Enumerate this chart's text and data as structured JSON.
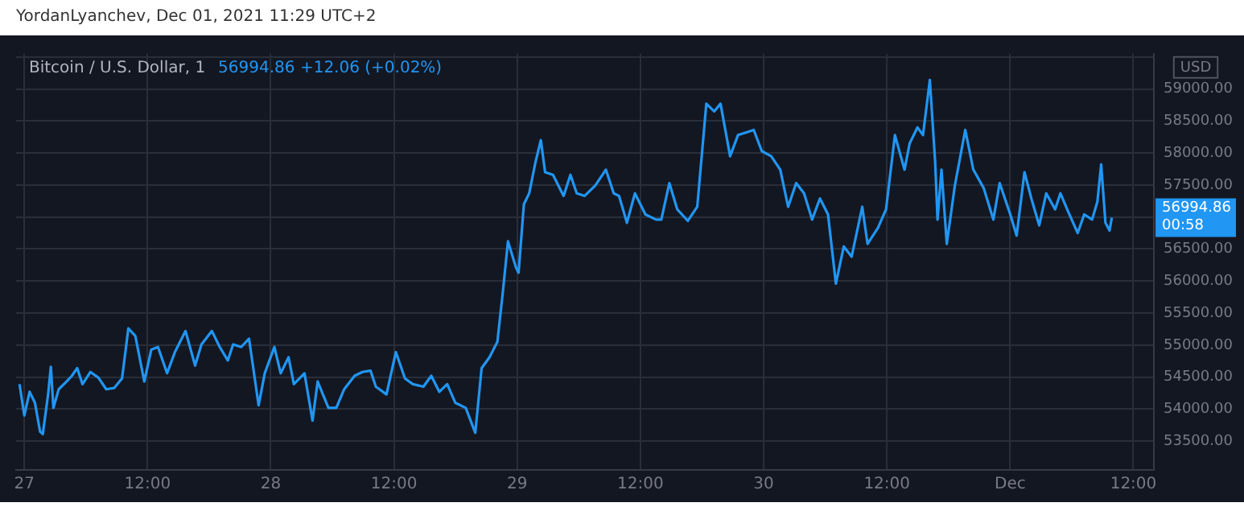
{
  "chart_data": {
    "type": "line",
    "title": "Bitcoin / U.S. Dollar, 1",
    "subtitle": "56994.86 +12.06 (+0.02%)",
    "ylabel": "USD",
    "annotations": [
      "YordanLyanchev, Dec 01, 2021 11:29 UTC+2",
      "56994.86 00:58"
    ],
    "x": [
      "--11-26T23:32",
      "--11-27T00:00",
      "--11-27T00:31",
      "--11-27T01:02",
      "--11-27T01:32",
      "--11-27T01:48",
      "--11-27T02:19",
      "--11-27T02:35",
      "--11-27T02:50",
      "--11-27T03:21",
      "--11-27T04:07",
      "--11-27T04:38",
      "--11-27T05:09",
      "--11-27T05:40",
      "--11-27T06:26",
      "--11-27T07:13",
      "--11-27T07:59",
      "--11-27T08:45",
      "--11-27T09:31",
      "--11-27T10:08",
      "--11-27T10:49",
      "--11-27T11:41",
      "--11-27T12:22",
      "--11-27T13:01",
      "--11-27T13:54",
      "--11-27T14:40",
      "--11-27T15:42",
      "--11-27T16:38",
      "--11-27T17:15",
      "--11-27T18:16",
      "--11-27T19:02",
      "--11-27T19:49",
      "--11-27T20:20",
      "--11-27T21:07",
      "--11-27T21:53",
      "--11-27T22:49",
      "--11-27T23:25",
      "--11-28T00:21",
      "--11-28T00:58",
      "--11-28T01:44",
      "--11-28T02:15",
      "--11-28T03:17",
      "--11-28T04:04",
      "--11-28T04:34",
      "--11-28T05:37",
      "--11-28T06:23",
      "--11-28T07:09",
      "--11-28T08:10",
      "--11-28T08:56",
      "--11-28T09:43",
      "--11-28T10:14",
      "--11-28T11:16",
      "--11-28T12:11",
      "--11-28T13:04",
      "--11-28T13:50",
      "--11-28T14:52",
      "--11-28T15:38",
      "--11-28T16:25",
      "--11-28T17:11",
      "--11-28T17:58",
      "--11-28T18:59",
      "--11-28T19:55",
      "--11-28T20:32",
      "--11-28T21:18",
      "--11-28T22:04",
      "--11-28T22:35",
      "--11-28T23:06",
      "--11-28T23:53",
      "--11-29T00:08",
      "--11-29T00:39",
      "--11-29T01:10",
      "--11-29T01:47",
      "--11-29T02:18",
      "--11-29T02:43",
      "--11-29T03:29",
      "--11-29T04:31",
      "--11-29T05:11",
      "--11-29T05:48",
      "--11-29T06:34",
      "--11-29T07:36",
      "--11-29T08:38",
      "--11-29T09:24",
      "--11-29T09:55",
      "--11-29T10:41",
      "--11-29T11:28",
      "--11-29T12:29",
      "--11-29T13:31",
      "--11-29T14:02",
      "--11-29T14:49",
      "--11-29T15:35",
      "--11-29T16:37",
      "--11-29T17:32",
      "--11-29T18:25",
      "--11-29T19:11",
      "--11-29T19:48",
      "--11-29T20:44",
      "--11-29T21:30",
      "--11-29T22:16",
      "--11-29T23:02",
      "--11-29T23:49",
      "--11-30T00:44",
      "--11-30T01:37",
      "--11-30T02:23",
      "--11-30T03:10",
      "--11-30T03:56",
      "--11-30T04:43",
      "--11-30T05:29",
      "--11-30T06:16",
      "--11-30T07:02",
      "--11-30T07:48",
      "--11-30T08:34",
      "--11-30T09:36",
      "--11-30T10:07",
      "--11-30T11:08",
      "--11-30T11:55",
      "--11-30T12:47",
      "--11-30T13:43",
      "--11-30T14:13",
      "--11-30T14:59",
      "--11-30T15:31",
      "--11-30T16:11",
      "--11-30T16:42",
      "--11-30T16:56",
      "--11-30T17:19",
      "--11-30T17:50",
      "--11-30T18:37",
      "--11-30T19:38",
      "--11-30T20:25",
      "--11-30T21:26",
      "--11-30T22:22",
      "--11-30T22:59",
      "--12-01T00:01",
      "--12-01T00:38",
      "--12-01T01:24",
      "--12-01T02:04",
      "--12-01T02:50",
      "--12-01T03:31",
      "--12-01T04:23",
      "--12-01T04:54",
      "--12-01T05:40",
      "--12-01T06:35",
      "--12-01T07:13",
      "--12-01T07:59",
      "--12-01T08:30",
      "--12-01T08:52",
      "--12-01T09:17",
      "--12-01T09:41",
      "--12-01T09:54"
    ],
    "series": [
      {
        "color": "#2196f3",
        "values": [
          54390,
          53900,
          54270,
          54100,
          53650,
          53610,
          54230,
          54660,
          54020,
          54310,
          54430,
          54520,
          54640,
          54390,
          54580,
          54490,
          54310,
          54330,
          54480,
          55260,
          55140,
          54430,
          54930,
          54970,
          54560,
          54890,
          55220,
          54680,
          55010,
          55220,
          54970,
          54760,
          55010,
          54970,
          55100,
          54060,
          54560,
          54970,
          54560,
          54810,
          54390,
          54560,
          53820,
          54430,
          54020,
          54020,
          54310,
          54520,
          54580,
          54600,
          54350,
          54230,
          54890,
          54480,
          54390,
          54350,
          54520,
          54270,
          54390,
          54100,
          54020,
          53630,
          54640,
          54810,
          55050,
          55800,
          56620,
          56210,
          56130,
          57200,
          57370,
          57860,
          58200,
          57700,
          57660,
          57330,
          57660,
          57370,
          57330,
          57490,
          57740,
          57370,
          57330,
          56910,
          57370,
          57040,
          56960,
          56960,
          57530,
          57120,
          56940,
          57160,
          58770,
          58650,
          58770,
          57950,
          58280,
          58320,
          58360,
          58030,
          57950,
          57740,
          57160,
          57530,
          57370,
          56960,
          57290,
          57040,
          55960,
          56540,
          56380,
          57160,
          56580,
          56830,
          57120,
          58280,
          57740,
          58150,
          58400,
          58280,
          59140,
          57860,
          56960,
          57740,
          56580,
          57490,
          58360,
          57740,
          57450,
          56960,
          57530,
          57040,
          56710,
          57700,
          57290,
          56870,
          57370,
          57120,
          57370,
          57080,
          56750,
          57040,
          56960,
          57240,
          57820,
          56910,
          56790,
          56990
        ]
      }
    ],
    "xlim": [
      "--11-26T23:12",
      "--12-01T14:00"
    ],
    "xticks": [
      {
        "value": "--11-27T00:00",
        "label": "27"
      },
      {
        "value": "--11-27T12:00",
        "label": "12:00"
      },
      {
        "value": "--11-28T00:00",
        "label": "28"
      },
      {
        "value": "--11-28T12:00",
        "label": "12:00"
      },
      {
        "value": "--11-29T00:00",
        "label": "29"
      },
      {
        "value": "--11-29T12:00",
        "label": "12:00"
      },
      {
        "value": "--11-30T00:00",
        "label": "30"
      },
      {
        "value": "--11-30T12:00",
        "label": "12:00"
      },
      {
        "value": "--12-01T00:00",
        "label": "Dec"
      },
      {
        "value": "--12-01T12:00",
        "label": "12:00"
      }
    ],
    "ylim": [
      53050,
      59550
    ],
    "yticks": [
      {
        "value": 53500,
        "label": "53500.00"
      },
      {
        "value": 54000,
        "label": "54000.00"
      },
      {
        "value": 54500,
        "label": "54500.00"
      },
      {
        "value": 55000,
        "label": "55000.00"
      },
      {
        "value": 55500,
        "label": "55500.00"
      },
      {
        "value": 56000,
        "label": "56000.00"
      },
      {
        "value": 56500,
        "label": "56500.00"
      },
      {
        "value": 57000,
        "label": null
      },
      {
        "value": 57500,
        "label": "57500.00"
      },
      {
        "value": 58000,
        "label": "58000.00"
      },
      {
        "value": 58500,
        "label": "58500.00"
      },
      {
        "value": 59000,
        "label": "59000.00"
      },
      {
        "value": 59500,
        "label": null
      }
    ],
    "grid": true,
    "marker": "none",
    "line_style": "solid",
    "legend": false
  }
}
